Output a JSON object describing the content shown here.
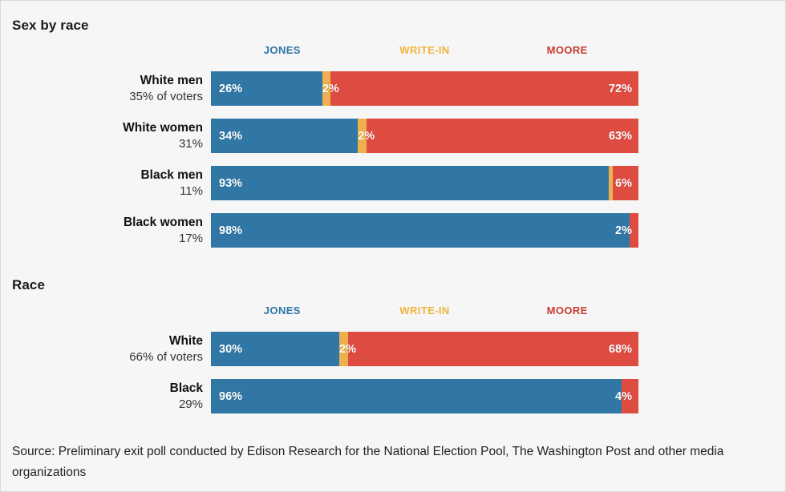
{
  "colors": {
    "bg": "#f6f6f6",
    "jones": "#3077a5",
    "writein": "#eeb04e",
    "moore": "#dd4b41",
    "hjones": "#2e76a4",
    "hwritein": "#f0b43f",
    "hmoore": "#c93b30"
  },
  "legend": {
    "jones": "JONES",
    "writein": "WRITE-IN",
    "moore": "MOORE"
  },
  "source": "Source: Preliminary exit poll conducted by Edison Research for the National Election Pool, The Washington Post and other media organizations",
  "chart_data": [
    {
      "type": "bar",
      "stacked": true,
      "orientation": "horizontal",
      "title": "Sex by race",
      "series_names": [
        "Jones",
        "Write-in",
        "Moore"
      ],
      "x_max": 100,
      "grid": false,
      "legend_position": "top",
      "rows": [
        {
          "category": "White men",
          "sublabel": "35% of voters",
          "jones": 26,
          "writein": 2,
          "moore": 72,
          "jones_label": "26%",
          "writein_label": "2%",
          "moore_label": "72%"
        },
        {
          "category": "White women",
          "sublabel": "31%",
          "jones": 34,
          "writein": 2,
          "moore": 63,
          "jones_label": "34%",
          "writein_label": "2%",
          "moore_label": "63%"
        },
        {
          "category": "Black men",
          "sublabel": "11%",
          "jones": 93,
          "writein": 1,
          "moore": 6,
          "jones_label": "93%",
          "writein_label": "",
          "moore_label": "6%"
        },
        {
          "category": "Black women",
          "sublabel": "17%",
          "jones": 98,
          "writein": 0,
          "moore": 2,
          "jones_label": "98%",
          "writein_label": "",
          "moore_label": "2%"
        }
      ]
    },
    {
      "type": "bar",
      "stacked": true,
      "orientation": "horizontal",
      "title": "Race",
      "series_names": [
        "Jones",
        "Write-in",
        "Moore"
      ],
      "x_max": 100,
      "grid": false,
      "legend_position": "top",
      "rows": [
        {
          "category": "White",
          "sublabel": "66% of voters",
          "jones": 30,
          "writein": 2,
          "moore": 68,
          "jones_label": "30%",
          "writein_label": "2%",
          "moore_label": "68%"
        },
        {
          "category": "Black",
          "sublabel": "29%",
          "jones": 96,
          "writein": 0,
          "moore": 4,
          "jones_label": "96%",
          "writein_label": "",
          "moore_label": "4%"
        }
      ]
    }
  ]
}
